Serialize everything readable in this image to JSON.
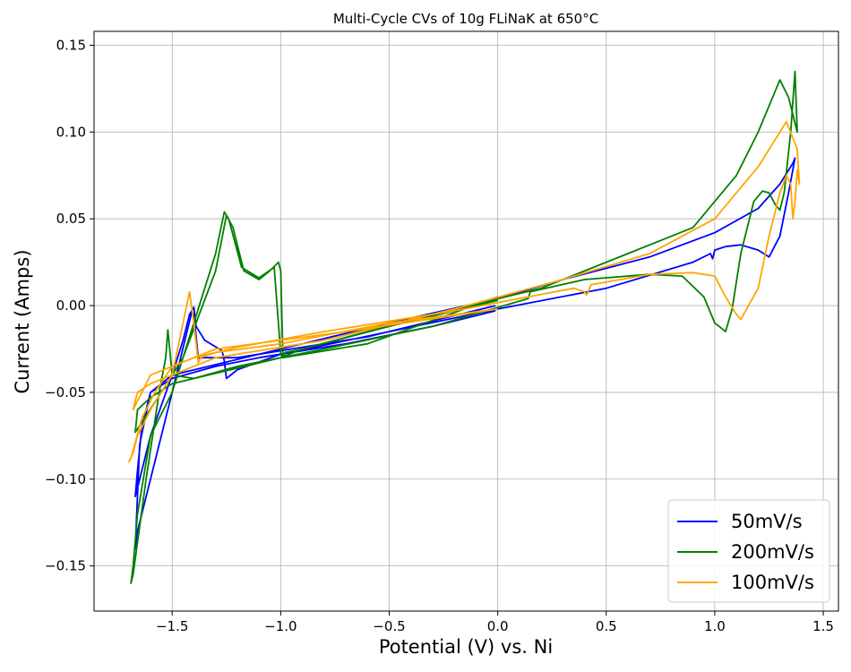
{
  "chart_data": {
    "type": "line",
    "title": "Multi-Cycle CVs of 10g FLiNaK at 650°C",
    "xlabel": "Potential (V) vs. Ni",
    "ylabel": "Current (Amps)",
    "xlim": [
      -1.86,
      1.57
    ],
    "ylim": [
      -0.176,
      0.158
    ],
    "xticks": [
      -1.5,
      -1.0,
      -0.5,
      0.0,
      0.5,
      1.0,
      1.5
    ],
    "xtick_labels": [
      "−1.5",
      "−1.0",
      "−0.5",
      "0.0",
      "0.5",
      "1.0",
      "1.5"
    ],
    "yticks": [
      -0.15,
      -0.1,
      -0.05,
      0.0,
      0.05,
      0.1,
      0.15
    ],
    "ytick_labels": [
      "−0.15",
      "−0.10",
      "−0.05",
      "0.00",
      "0.05",
      "0.10",
      "0.15"
    ],
    "grid": true,
    "legend_position": "lower-right",
    "series": [
      {
        "name": "50mV/s",
        "color": "#0000ff",
        "x": [
          -0.01,
          -0.3,
          -0.7,
          -1.1,
          -1.3,
          -1.5,
          -1.6,
          -1.64,
          -1.66,
          -1.67,
          -1.66,
          -1.6,
          -1.5,
          -1.45,
          -1.42,
          -1.4,
          -1.39,
          -1.35,
          -1.27,
          -1.26,
          -1.25,
          -1.2,
          -1.0,
          -0.5,
          0.0,
          0.5,
          0.9,
          0.98,
          0.99,
          1.0,
          1.05,
          1.12,
          1.2,
          1.25,
          1.3,
          1.34,
          1.37,
          1.36,
          1.3,
          1.2,
          1.0,
          0.7,
          0.3,
          0.0,
          -0.5,
          -1.0,
          -1.5,
          -1.6,
          -1.65,
          -1.67,
          -1.66,
          -1.5,
          -1.41,
          -1.4,
          -1.38,
          -1.2,
          -0.6,
          -0.01
        ],
        "y": [
          -0.003,
          -0.012,
          -0.022,
          -0.03,
          -0.035,
          -0.042,
          -0.05,
          -0.07,
          -0.095,
          -0.11,
          -0.105,
          -0.075,
          -0.04,
          -0.02,
          -0.005,
          -0.001,
          -0.012,
          -0.02,
          -0.026,
          -0.032,
          -0.042,
          -0.037,
          -0.028,
          -0.015,
          -0.002,
          0.01,
          0.025,
          0.03,
          0.027,
          0.032,
          0.034,
          0.035,
          0.032,
          0.028,
          0.04,
          0.065,
          0.085,
          0.082,
          0.07,
          0.056,
          0.042,
          0.028,
          0.015,
          0.004,
          -0.01,
          -0.025,
          -0.04,
          -0.05,
          -0.08,
          -0.14,
          -0.13,
          -0.05,
          -0.004,
          -0.005,
          -0.03,
          -0.03,
          -0.018,
          0.0
        ]
      },
      {
        "name": "200mV/s",
        "color": "#008000",
        "x": [
          0.0,
          -0.5,
          -0.9,
          -0.98,
          -0.99,
          -1.0,
          -1.03,
          -1.1,
          -1.18,
          -1.24,
          -1.26,
          -1.3,
          -1.4,
          -1.5,
          -1.6,
          -1.66,
          -1.68,
          -1.69,
          -1.68,
          -1.62,
          -1.56,
          -1.53,
          -1.52,
          -1.5,
          -1.4,
          -1.2,
          -0.8,
          -0.3,
          0.14,
          0.15,
          0.4,
          0.7,
          0.85,
          0.95,
          1.0,
          1.05,
          1.08,
          1.12,
          1.18,
          1.22,
          1.25,
          1.28,
          1.3,
          1.32,
          1.35,
          1.37,
          1.38,
          1.34,
          1.3,
          1.2,
          1.1,
          1.0,
          0.9,
          0.6,
          0.2,
          -0.3,
          -0.9,
          -1.0,
          -1.5,
          -1.6,
          -1.66,
          -1.67,
          -1.55,
          -1.45,
          -1.3,
          -1.25,
          -1.22,
          -1.17,
          -1.1,
          -1.05,
          -1.01,
          -1.0,
          -0.99,
          -0.6,
          0.0
        ],
        "y": [
          0.003,
          -0.012,
          -0.025,
          -0.027,
          -0.03,
          -0.028,
          0.022,
          0.016,
          0.022,
          0.05,
          0.054,
          0.03,
          -0.01,
          -0.05,
          -0.075,
          -0.12,
          -0.15,
          -0.16,
          -0.155,
          -0.1,
          -0.05,
          -0.03,
          -0.014,
          -0.04,
          -0.042,
          -0.035,
          -0.025,
          -0.012,
          0.004,
          0.008,
          0.015,
          0.018,
          0.017,
          0.005,
          -0.01,
          -0.015,
          -0.002,
          0.03,
          0.06,
          0.066,
          0.065,
          0.058,
          0.055,
          0.065,
          0.1,
          0.135,
          0.1,
          0.12,
          0.13,
          0.1,
          0.075,
          0.06,
          0.045,
          0.03,
          0.01,
          -0.005,
          -0.025,
          -0.03,
          -0.045,
          -0.053,
          -0.06,
          -0.073,
          -0.05,
          -0.03,
          0.02,
          0.052,
          0.045,
          0.02,
          0.015,
          0.02,
          0.025,
          0.02,
          -0.03,
          -0.022,
          0.005
        ]
      },
      {
        "name": "100mV/s",
        "color": "#ffa500",
        "x": [
          0.0,
          -0.5,
          -1.0,
          -1.3,
          -1.37,
          -1.38,
          -1.4,
          -1.42,
          -1.5,
          -1.6,
          -1.66,
          -1.68,
          -1.7,
          -1.69,
          -1.64,
          -1.58,
          -1.5,
          -1.4,
          -1.2,
          -0.8,
          -0.2,
          0.35,
          0.4,
          0.41,
          0.43,
          0.7,
          0.9,
          1.0,
          1.05,
          1.1,
          1.12,
          1.2,
          1.25,
          1.3,
          1.33,
          1.35,
          1.36,
          1.37,
          1.38,
          1.39,
          1.38,
          1.33,
          1.2,
          1.0,
          0.7,
          0.3,
          -0.2,
          -0.8,
          -1.3,
          -1.5,
          -1.6,
          -1.66,
          -1.68,
          -1.6,
          -1.5,
          -1.3,
          -0.7,
          0.0
        ],
        "y": [
          -0.002,
          -0.01,
          -0.022,
          -0.027,
          -0.03,
          -0.033,
          -0.01,
          0.008,
          -0.04,
          -0.06,
          -0.075,
          -0.085,
          -0.09,
          -0.088,
          -0.065,
          -0.05,
          -0.035,
          -0.03,
          -0.024,
          -0.015,
          -0.003,
          0.01,
          0.008,
          0.006,
          0.012,
          0.018,
          0.019,
          0.017,
          0.005,
          -0.005,
          -0.008,
          0.01,
          0.04,
          0.065,
          0.075,
          0.07,
          0.05,
          0.06,
          0.078,
          0.07,
          0.09,
          0.106,
          0.08,
          0.05,
          0.03,
          0.015,
          -0.002,
          -0.02,
          -0.03,
          -0.04,
          -0.045,
          -0.05,
          -0.06,
          -0.04,
          -0.035,
          -0.025,
          -0.015,
          -0.002
        ]
      }
    ]
  }
}
